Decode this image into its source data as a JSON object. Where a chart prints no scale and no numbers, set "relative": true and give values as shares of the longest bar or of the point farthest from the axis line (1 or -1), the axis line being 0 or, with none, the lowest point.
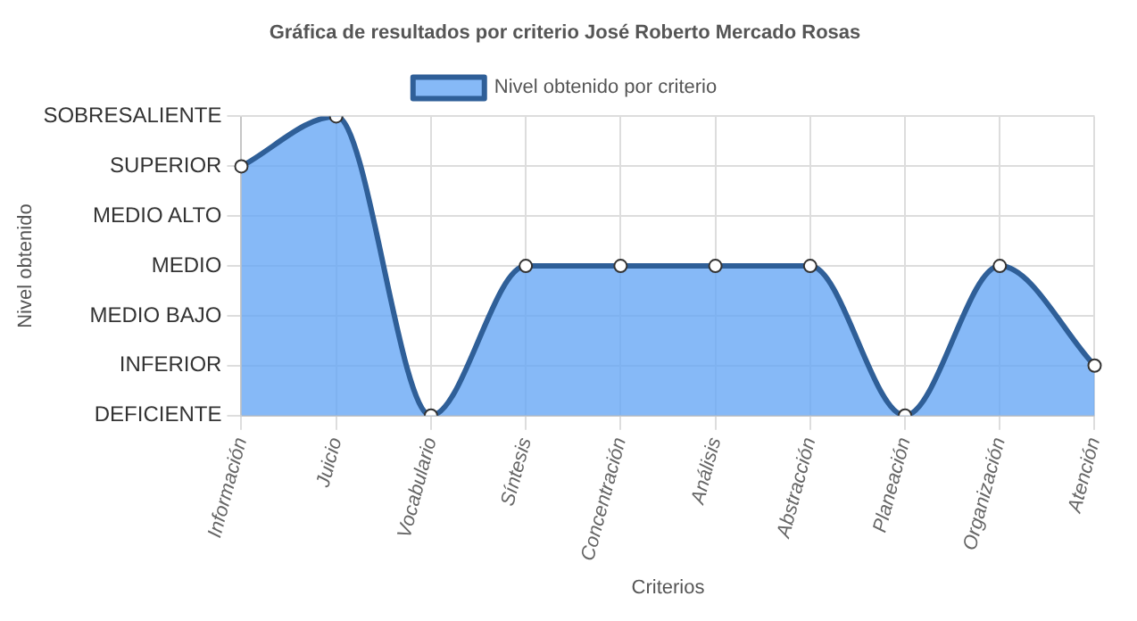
{
  "chart_data": {
    "type": "area",
    "title": "Gráfica de resultados por criterio José Roberto Mercado Rosas",
    "xlabel": "Criterios",
    "annotations": [
      "Nivel obtenido"
    ],
    "categories": [
      "Información",
      "Juicio",
      "Vocabulario",
      "Síntesis",
      "Concentración",
      "Análisis",
      "Abstracción",
      "Planeación",
      "Organización",
      "Atención"
    ],
    "series": [
      {
        "name": "Nivel obtenido por criterio",
        "color": "#2f5f98",
        "values": [
          0.833,
          1,
          0,
          0.5,
          0.5,
          0.5,
          0.5,
          0,
          0.5,
          0.167
        ]
      }
    ],
    "relative": true,
    "y_categories": [
      "SOBRESALIENTE",
      "SUPERIOR",
      "MEDIO ALTO",
      "MEDIO",
      "MEDIO BAJO",
      "INFERIOR",
      "DEFICIENTE"
    ],
    "grid": true,
    "legend": "top",
    "marker": "circle",
    "line_style": "solid"
  }
}
